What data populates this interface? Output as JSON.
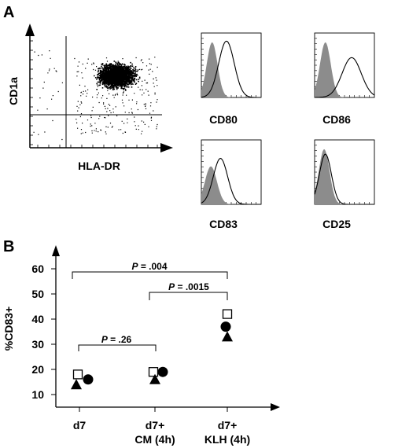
{
  "panel_a": {
    "label": "A",
    "scatter": {
      "xlabel": "HLA-DR",
      "ylabel": "CD1a"
    },
    "histograms": [
      {
        "label": "CD80"
      },
      {
        "label": "CD86"
      },
      {
        "label": "CD83"
      },
      {
        "label": "CD25"
      }
    ]
  },
  "panel_b": {
    "label": "B",
    "chart_data": {
      "type": "scatter",
      "ylabel": "%CD83+",
      "ylim": [
        5,
        65
      ],
      "yticks": [
        "60",
        "50",
        "40",
        "30",
        "20",
        "10"
      ],
      "categories": [
        {
          "line1": "d7",
          "line2": ""
        },
        {
          "line1": "d7+",
          "line2": "CM (4h)"
        },
        {
          "line1": "d7+",
          "line2": "KLH (4h)"
        }
      ],
      "series": [
        {
          "marker": "open-square",
          "values": [
            18,
            19,
            42
          ]
        },
        {
          "marker": "filled-circle",
          "values": [
            16,
            19,
            37
          ]
        },
        {
          "marker": "filled-triangle",
          "values": [
            14,
            16,
            33
          ]
        }
      ],
      "significance": [
        {
          "p_label": "P",
          "p_value": " = .004"
        },
        {
          "p_label": "P",
          "p_value": " = .0015"
        },
        {
          "p_label": "P",
          "p_value": " = .26"
        }
      ]
    }
  }
}
